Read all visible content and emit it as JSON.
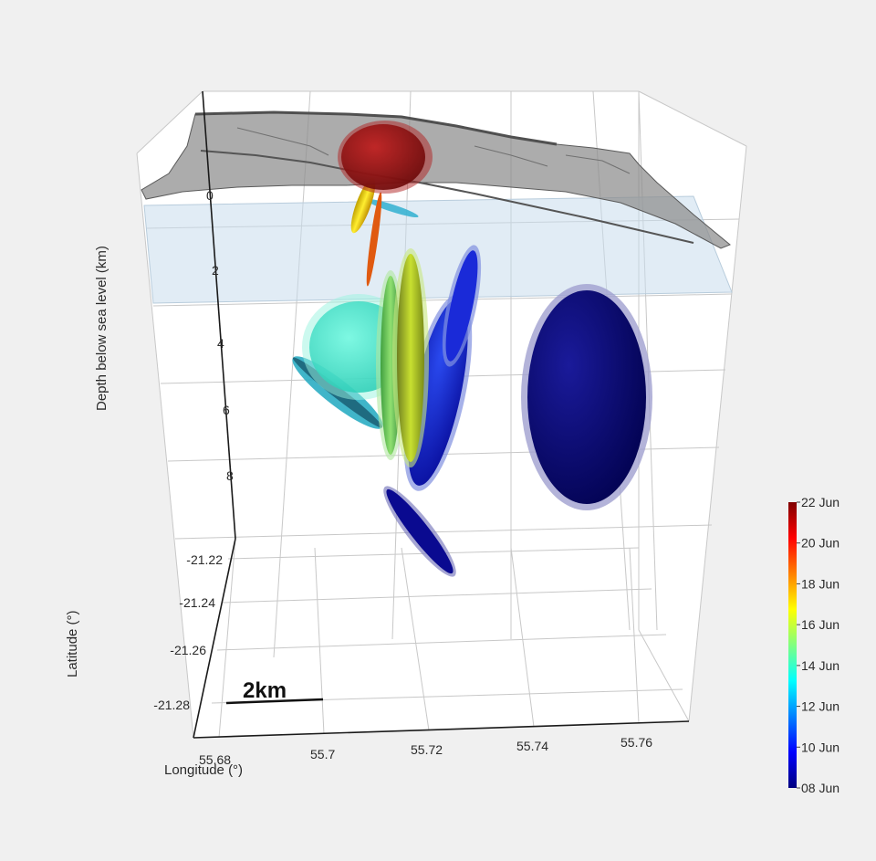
{
  "chart_data": {
    "type": "scatter3d",
    "title": "",
    "axes": {
      "x": {
        "label": "Longitude (°)",
        "ticks": [
          "55.68",
          "55.7",
          "55.72",
          "55.74",
          "55.76"
        ]
      },
      "y": {
        "label": "Latitude (°)",
        "ticks": [
          "-21.22",
          "-21.24",
          "-21.26",
          "-21.28"
        ]
      },
      "z": {
        "label": "Depth below sea level (km)",
        "ticks": [
          "0",
          "2",
          "4",
          "6",
          "8"
        ],
        "reversed": true
      }
    },
    "scale_bar": {
      "label": "2km"
    },
    "colorbar": {
      "ticks": [
        "22 Jun",
        "20 Jun",
        "18 Jun",
        "16 Jun",
        "14 Jun",
        "12 Jun",
        "10 Jun",
        "08 Jun"
      ],
      "colormap": "jet",
      "colors": [
        "#7f0000",
        "#ff0000",
        "#ff8000",
        "#ffff00",
        "#80ff80",
        "#00ffff",
        "#0080ff",
        "#0000ff",
        "#00007f"
      ]
    },
    "ellipsoids": [
      {
        "date": "08 Jun",
        "color": "#0a0a6e"
      },
      {
        "date": "09 Jun",
        "color": "#050590"
      },
      {
        "date": "10 Jun",
        "color": "#0a10c8"
      },
      {
        "date": "11 Jun",
        "color": "#1030d8"
      },
      {
        "date": "12 Jun",
        "color": "#2bc0e0"
      },
      {
        "date": "14 Jun",
        "color": "#40e8c8"
      },
      {
        "date": "15 Jun",
        "color": "#70d060"
      },
      {
        "date": "16 Jun",
        "color": "#a8d020"
      },
      {
        "date": "17 Jun",
        "color": "#f0e020"
      },
      {
        "date": "19 Jun",
        "color": "#e06010"
      },
      {
        "date": "21 Jun",
        "color": "#a01818"
      }
    ],
    "surfaces": [
      {
        "name": "topography",
        "color": "#8c8c8c"
      },
      {
        "name": "sea level plane",
        "color": "#c8dcec"
      }
    ]
  }
}
